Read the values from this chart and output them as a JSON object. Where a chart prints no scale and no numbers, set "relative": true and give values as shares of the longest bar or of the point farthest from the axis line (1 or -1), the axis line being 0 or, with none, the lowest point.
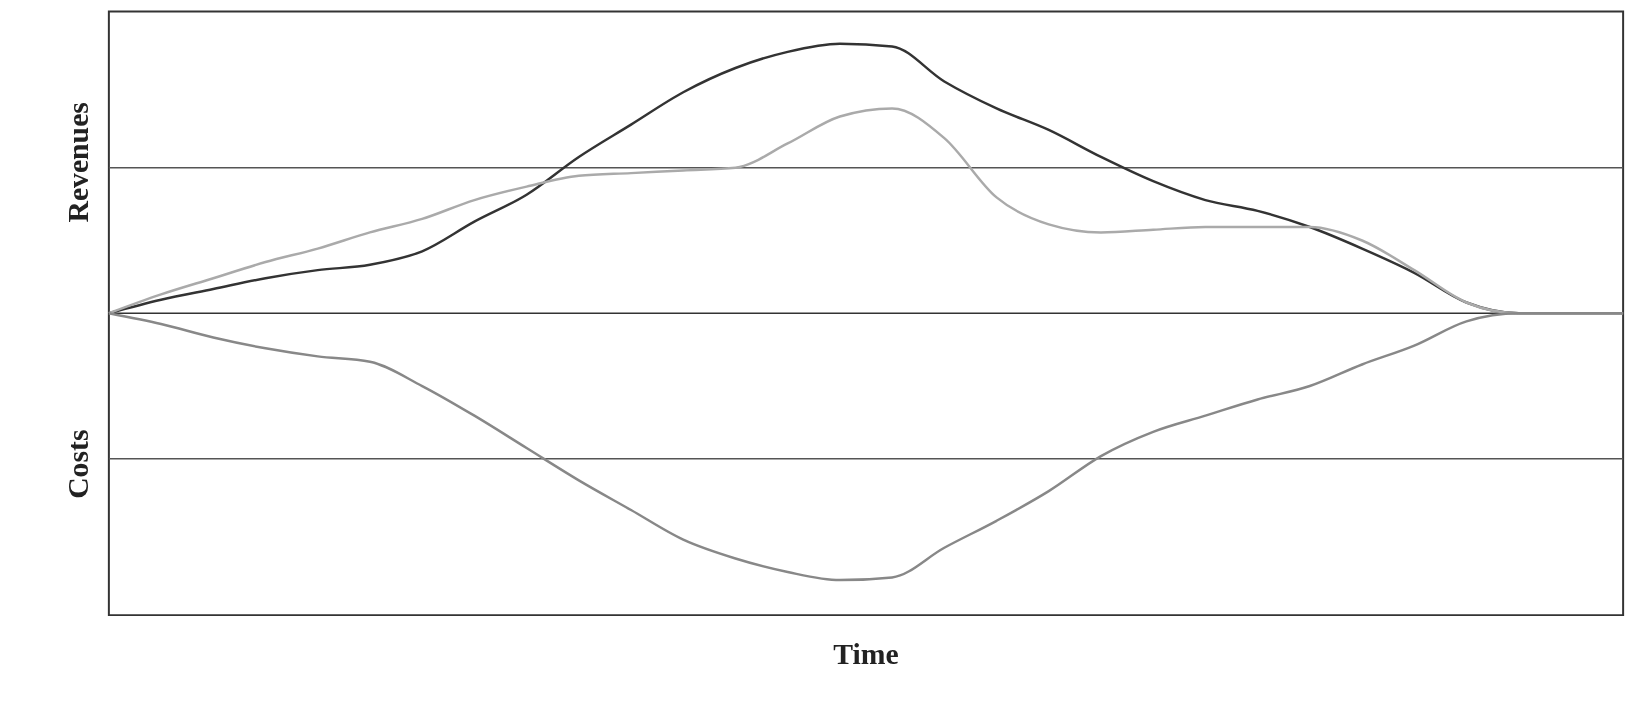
{
  "chart_data": {
    "type": "line",
    "relative": true,
    "xlabel": "Time",
    "annotations": [
      "Revenues",
      "Costs"
    ],
    "categories": [
      null,
      null,
      null,
      null,
      null,
      null,
      null,
      null,
      null,
      null,
      null,
      null,
      null,
      null,
      null,
      null,
      null,
      null,
      null,
      null,
      null,
      null,
      null,
      null,
      null,
      null,
      null,
      null,
      null,
      null
    ],
    "series": [
      {
        "color": "#333333",
        "values": [
          0,
          0.05,
          0.09,
          0.13,
          0.16,
          0.18,
          0.23,
          0.34,
          0.44,
          0.58,
          0.7,
          0.82,
          0.91,
          0.97,
          1.0,
          0.99,
          0.86,
          0.76,
          0.68,
          0.58,
          0.49,
          0.42,
          0.38,
          0.32,
          0.24,
          0.15,
          0.04,
          0,
          0,
          0
        ]
      },
      {
        "color": "#aaaaaa",
        "values": [
          0,
          0.07,
          0.13,
          0.19,
          0.24,
          0.3,
          0.35,
          0.42,
          0.47,
          0.51,
          0.52,
          0.53,
          0.54,
          0.63,
          0.73,
          0.76,
          0.65,
          0.43,
          0.33,
          0.3,
          0.31,
          0.32,
          0.32,
          0.32,
          0.27,
          0.16,
          0.04,
          0,
          0,
          0
        ]
      },
      {
        "color": "#888888",
        "values": [
          0,
          -0.04,
          -0.09,
          -0.13,
          -0.16,
          -0.18,
          -0.27,
          -0.38,
          -0.5,
          -0.62,
          -0.73,
          -0.84,
          -0.91,
          -0.96,
          -0.99,
          -0.98,
          -0.87,
          -0.77,
          -0.66,
          -0.53,
          -0.44,
          -0.38,
          -0.32,
          -0.27,
          -0.19,
          -0.12,
          -0.03,
          0,
          0,
          0
        ]
      }
    ],
    "ref_lines": [
      {
        "axis": "y",
        "value": 0,
        "color": "#333333"
      },
      {
        "axis": "y",
        "value": 0.54,
        "color": "#555555"
      },
      {
        "axis": "y",
        "value": -0.54,
        "color": "#555555"
      }
    ],
    "marker": "none",
    "line_style": "solid"
  }
}
